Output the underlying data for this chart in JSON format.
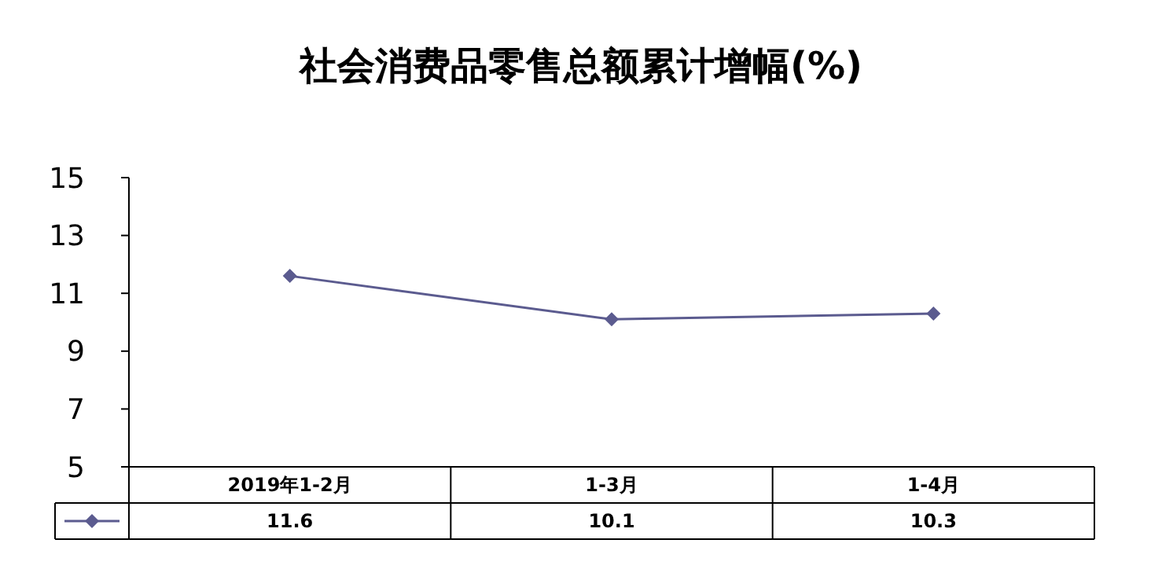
{
  "chart_data": {
    "type": "line",
    "title": "社会消费品零售总额累计增幅(%)",
    "categories": [
      "2019年1-2月",
      "1-3月",
      "1-4月"
    ],
    "series": [
      {
        "color": "#5b5b8f",
        "values": [
          11.6,
          10.1,
          10.3
        ]
      }
    ],
    "ylim": [
      5,
      15
    ],
    "yticks": [
      5,
      7,
      9,
      11,
      13,
      15
    ],
    "marker": "diamond",
    "data_labels": true,
    "grid": false
  }
}
